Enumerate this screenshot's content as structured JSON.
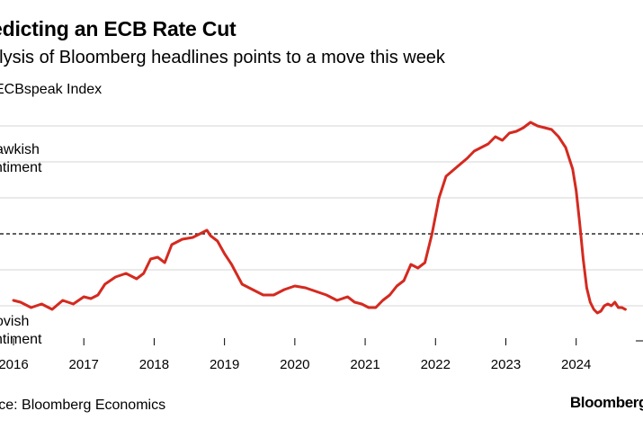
{
  "title": "edicting an ECB Rate Cut",
  "subtitle": "alysis of Bloomberg headlines points to a move this week",
  "legend_label": "ECBspeak Index",
  "source": "urce: Bloomberg Economics",
  "brand": "Bloomberg",
  "colors": {
    "series": "#d42a20",
    "grid": "#d4d4d4",
    "reference": "#000000"
  },
  "chart_data": {
    "type": "line",
    "title": "edicting an ECB Rate Cut",
    "subtitle": "alysis of Bloomberg headlines points to a move this week",
    "xlabel": "",
    "ylabel": "",
    "xlim": [
      2016,
      2024.95
    ],
    "ylim": [
      0,
      6
    ],
    "grid": true,
    "reference_line": 3,
    "annotations": {
      "hawkish": [
        "awkish",
        "ntiment"
      ],
      "dovish": [
        "ovish",
        "ntiment"
      ]
    },
    "x_ticks": [
      {
        "value": 2016,
        "label": "2016"
      },
      {
        "value": 2017,
        "label": "2017"
      },
      {
        "value": 2018,
        "label": "2018"
      },
      {
        "value": 2019,
        "label": "2019"
      },
      {
        "value": 2020,
        "label": "2020"
      },
      {
        "value": 2021,
        "label": "2021"
      },
      {
        "value": 2022,
        "label": "2022"
      },
      {
        "value": 2023,
        "label": "2023"
      },
      {
        "value": 2024,
        "label": "2024"
      }
    ],
    "series": [
      {
        "name": "ECBspeak Index",
        "x": [
          2016.0,
          2016.1,
          2016.25,
          2016.4,
          2016.55,
          2016.7,
          2016.85,
          2017.0,
          2017.1,
          2017.2,
          2017.3,
          2017.45,
          2017.6,
          2017.75,
          2017.85,
          2017.95,
          2018.05,
          2018.15,
          2018.25,
          2018.4,
          2018.55,
          2018.65,
          2018.75,
          2018.8,
          2018.9,
          2019.0,
          2019.1,
          2019.25,
          2019.4,
          2019.55,
          2019.7,
          2019.85,
          2020.0,
          2020.15,
          2020.3,
          2020.45,
          2020.6,
          2020.75,
          2020.85,
          2020.95,
          2021.05,
          2021.15,
          2021.25,
          2021.35,
          2021.45,
          2021.55,
          2021.65,
          2021.75,
          2021.85,
          2021.95,
          2022.05,
          2022.15,
          2022.3,
          2022.45,
          2022.55,
          2022.65,
          2022.75,
          2022.85,
          2022.95,
          2023.05,
          2023.15,
          2023.25,
          2023.35,
          2023.45,
          2023.55,
          2023.65,
          2023.75,
          2023.85,
          2023.95,
          2024.0,
          2024.05,
          2024.1,
          2024.15,
          2024.2,
          2024.25,
          2024.3,
          2024.35,
          2024.4,
          2024.45,
          2024.5,
          2024.55,
          2024.6,
          2024.65,
          2024.7
        ],
        "values": [
          1.15,
          1.1,
          0.95,
          1.05,
          0.9,
          1.15,
          1.05,
          1.25,
          1.2,
          1.3,
          1.6,
          1.8,
          1.9,
          1.75,
          1.9,
          2.3,
          2.35,
          2.2,
          2.7,
          2.85,
          2.9,
          3.0,
          3.1,
          2.95,
          2.8,
          2.45,
          2.15,
          1.6,
          1.45,
          1.3,
          1.3,
          1.45,
          1.55,
          1.5,
          1.4,
          1.3,
          1.15,
          1.25,
          1.1,
          1.05,
          0.95,
          0.95,
          1.15,
          1.3,
          1.55,
          1.7,
          2.15,
          2.05,
          2.2,
          3.0,
          4.0,
          4.6,
          4.85,
          5.1,
          5.3,
          5.4,
          5.5,
          5.7,
          5.6,
          5.8,
          5.85,
          5.95,
          6.1,
          6.0,
          5.95,
          5.9,
          5.7,
          5.4,
          4.8,
          4.2,
          3.3,
          2.3,
          1.5,
          1.1,
          0.9,
          0.8,
          0.85,
          1.0,
          1.05,
          1.0,
          1.1,
          0.95,
          0.95,
          0.9
        ]
      }
    ]
  }
}
